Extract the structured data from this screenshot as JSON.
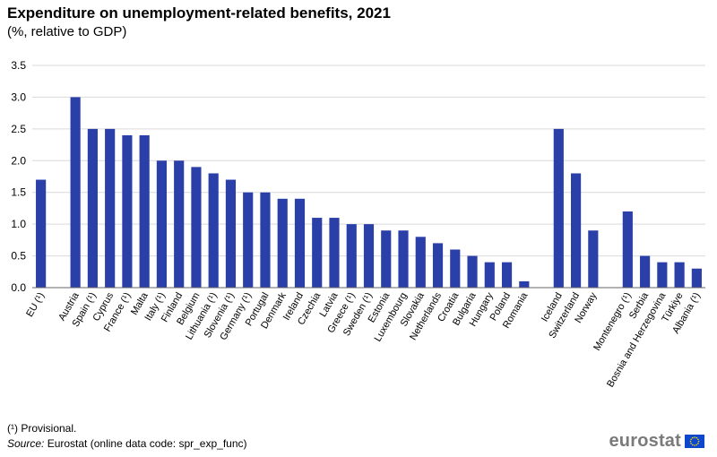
{
  "header": {
    "title": "Expenditure on unemployment-related benefits, 2021",
    "subtitle": "(%, relative to GDP)"
  },
  "footer": {
    "note": "(¹) Provisional.",
    "source_label": "Source:",
    "source_text": "Eurostat (online data code: spr_exp_func)",
    "logo_text": "eurostat"
  },
  "colors": {
    "bar": "#2b3fa8",
    "grid": "#d9d9d9",
    "axis": "#666666",
    "flag_blue": "#0e47cb",
    "flag_star": "#ffdd00"
  },
  "chart_data": {
    "type": "bar",
    "title": "Expenditure on unemployment-related benefits, 2021",
    "ylabel": "",
    "xlabel": "",
    "ylim": [
      0,
      3.5
    ],
    "yticks": [
      "0.0",
      "0.5",
      "1.0",
      "1.5",
      "2.0",
      "2.5",
      "3.0",
      "3.5"
    ],
    "grid": true,
    "groups": [
      {
        "categories": [
          "EU (¹)"
        ],
        "values": [
          1.7
        ]
      },
      {
        "categories": [
          "Austria",
          "Spain (¹)",
          "Cyprus",
          "France (¹)",
          "Malta",
          "Italy (¹)",
          "Finland",
          "Belgium",
          "Lithuania (¹)",
          "Slovenia (¹)",
          "Germany (¹)",
          "Portugal",
          "Denmark",
          "Ireland",
          "Czechia",
          "Latvia",
          "Greece (¹)",
          "Sweden (¹)",
          "Estonia",
          "Luxembourg",
          "Slovakia",
          "Netherlands",
          "Croatia",
          "Bulgaria",
          "Hungary",
          "Poland",
          "Romania"
        ],
        "values": [
          3.0,
          2.5,
          2.5,
          2.4,
          2.4,
          2.0,
          2.0,
          1.9,
          1.8,
          1.7,
          1.5,
          1.5,
          1.4,
          1.4,
          1.1,
          1.1,
          1.0,
          1.0,
          0.9,
          0.9,
          0.8,
          0.7,
          0.6,
          0.5,
          0.4,
          0.4,
          0.1
        ]
      },
      {
        "categories": [
          "Iceland",
          "Switzerland",
          "Norway"
        ],
        "values": [
          2.5,
          1.8,
          0.9
        ]
      },
      {
        "categories": [
          "Montenegro (¹)",
          "Serbia",
          "Bosnia and Herzegovina",
          "Türkiye",
          "Albania (¹)"
        ],
        "values": [
          1.2,
          0.5,
          0.4,
          0.4,
          0.3
        ]
      }
    ]
  }
}
